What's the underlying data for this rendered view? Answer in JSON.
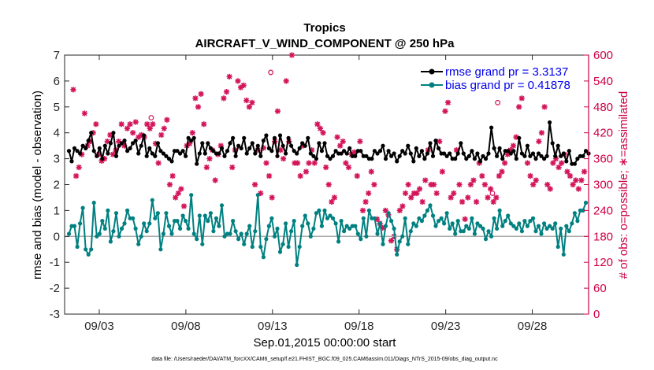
{
  "chart_data": {
    "type": "line",
    "title": "Tropics",
    "subtitle": "AIRCRAFT_V_WIND_COMPONENT @ 250 hPa",
    "xlabel": "Sep.01,2015 00:00:00 start",
    "ylabel_left": "rmse and bias (model - observation)",
    "ylabel_right": "# of obs: o=possible; ∗=assimilated",
    "footnote": "data file: /Users/raeder/DAI/ATM_forcXX/CAM6_setup/f.e21.FHIST_BGC.f09_025.CAM6assim.011/Diags_NTrS_2015-09/obs_diag_output.nc",
    "x_ticks": [
      "09/03",
      "09/08",
      "09/13",
      "09/18",
      "09/23",
      "09/28"
    ],
    "x_tick_days": [
      3,
      8,
      13,
      18,
      23,
      28
    ],
    "xlim": [
      1,
      31.25
    ],
    "ylim_left": [
      -3,
      7
    ],
    "y_ticks_left": [
      "-3",
      "-2",
      "-1",
      "0",
      "1",
      "2",
      "3",
      "4",
      "5",
      "6",
      "7"
    ],
    "ylim_right": [
      0,
      600
    ],
    "y_ticks_right": [
      "0",
      "60",
      "120",
      "180",
      "240",
      "300",
      "360",
      "420",
      "480",
      "540",
      "600"
    ],
    "legend": {
      "location": "top-right",
      "rmse_label": "rmse grand pr = 3.3137",
      "bias_label": "bias grand pr = 0.41878"
    },
    "colors": {
      "rmse": "#000000",
      "bias": "#008080",
      "obs": "#d4145a",
      "zero_line": "#aaaaaa",
      "right_axis": "#cc0044"
    },
    "rmse": [
      3.3,
      2.9,
      3.4,
      3.3,
      3.2,
      3.5,
      3.4,
      3.7,
      4.0,
      3.3,
      3.1,
      3.4,
      3.0,
      3.5,
      3.2,
      3.6,
      4.0,
      3.1,
      3.5,
      3.6,
      3.7,
      3.3,
      3.4,
      3.6,
      3.7,
      3.2,
      3.5,
      3.9,
      3.1,
      3.4,
      3.2,
      3.1,
      3.6,
      3.3,
      3.2,
      3.1,
      3.0,
      2.9,
      3.3,
      3.3,
      3.2,
      3.3,
      3.1,
      3.8,
      3.7,
      3.8,
      2.8,
      3.2,
      3.6,
      3.2,
      3.6,
      3.4,
      3.3,
      3.2,
      3.2,
      3.4,
      3.1,
      3.3,
      3.6,
      3.8,
      3.1,
      3.5,
      3.4,
      3.8,
      3.2,
      3.4,
      3.6,
      3.2,
      3.5,
      3.1,
      3.7,
      3.9,
      3.4,
      3.3,
      3.8,
      3.1,
      3.9,
      3.5,
      3.2,
      3.8,
      3.5,
      3.3,
      3.2,
      3.4,
      3.6,
      3.5,
      3.8,
      3.2,
      3.1,
      3.0,
      3.6,
      3.3,
      3.6,
      3.1,
      3.0,
      3.1,
      3.3,
      3.2,
      3.2,
      3.3,
      3.2,
      3.4,
      3.1,
      3.1,
      3.3,
      3.3,
      3.1,
      3.1,
      3.0,
      3.0,
      3.3,
      3.2,
      3.3,
      3.5,
      3.0,
      3.3,
      3.1,
      3.2,
      2.9,
      3.1,
      3.3,
      3.2,
      3.5,
      3.2,
      2.9,
      3.4,
      3.1,
      3.3,
      3.0,
      3.2,
      3.6,
      3.1,
      3.7,
      3.4,
      3.2,
      3.2,
      3.1,
      3.2,
      3.0,
      3.0,
      3.2,
      3.6,
      3.2,
      3.0,
      3.1,
      3.3,
      3.0,
      3.2,
      2.9,
      3.1,
      3.0,
      3.2,
      4.2,
      3.4,
      3.1,
      3.4,
      3.0,
      3.3,
      3.3,
      3.2,
      3.3,
      3.0,
      3.8,
      3.2,
      3.1,
      3.5,
      3.1,
      3.2,
      3.0,
      3.2,
      3.1,
      3.0,
      3.1,
      4.4,
      3.6,
      3.1,
      3.5,
      3.1,
      3.2,
      2.9,
      3.3,
      2.8,
      2.8,
      3.0,
      3.1,
      3.1,
      3.3,
      3.2
    ],
    "bias": [
      0.1,
      0.4,
      0.4,
      -0.4,
      0.5,
      1.1,
      -0.5,
      -0.7,
      -0.5,
      1.3,
      0.0,
      0.1,
      0.6,
      0.3,
      1.0,
      -0.2,
      0.2,
      0.9,
      0.0,
      0.3,
      0.5,
      1.0,
      0.7,
      0.7,
      0.3,
      -0.3,
      0.0,
      0.5,
      0.2,
      0.5,
      1.4,
      0.7,
      0.9,
      -0.5,
      0.1,
      0.9,
      0.4,
      0.1,
      0.6,
      0.6,
      0.3,
      0.8,
      0.6,
      0.3,
      1.6,
      0.1,
      -0.1,
      0.8,
      -0.3,
      0.8,
      0.6,
      0.9,
      0.2,
      0.7,
      0.4,
      1.2,
      0.0,
      0.1,
      0.1,
      0.6,
      0.2,
      -0.1,
      0.1,
      -0.3,
      0.1,
      0.4,
      -0.4,
      0.2,
      1.6,
      -0.4,
      -0.8,
      -0.1,
      0.4,
      0.7,
      0.0,
      0.3,
      -0.6,
      -0.3,
      0.5,
      -0.4,
      0.2,
      0.6,
      -1.1,
      -0.4,
      0.4,
      0.8,
      0.5,
      0.0,
      0.3,
      0.9,
      1.0,
      0.4,
      1.0,
      0.7,
      0.8,
      0.7,
      0.5,
      -0.2,
      0.6,
      0.2,
      0.4,
      0.3,
      0.4,
      0.4,
      0.1,
      -0.1,
      0.7,
      0.0,
      1.0,
      0.7,
      0.7,
      0.1,
      0.5,
      -0.3,
      0.4,
      0.9,
      0.6,
      0.3,
      -0.7,
      -0.2,
      0.0,
      0.7,
      -0.3,
      0.2,
      0.5,
      0.4,
      0.7,
      0.6,
      0.8,
      1.0,
      1.2,
      0.8,
      0.4,
      0.6,
      0.7,
      0.5,
      0.9,
      0.3,
      0.5,
      0.1,
      0.6,
      0.2,
      0.2,
      0.4,
      0.3,
      0.7,
      0.1,
      0.5,
      0.4,
      0.3,
      -0.1,
      0.2,
      0.0,
      0.7,
      0.3,
      1.0,
      0.4,
      0.6,
      0.8,
      0.5,
      0.4,
      0.3,
      0.5,
      0.2,
      0.6,
      0.4,
      0.6,
      0.7,
      0.2,
      0.4,
      0.1,
      0.5,
      0.3,
      0.4,
      0.3,
      0.5,
      -0.4,
      0.3,
      -0.7,
      0.4,
      0.2,
      0.5,
      0.9,
      0.6,
      1.0,
      1.0,
      1.3
    ],
    "obs_assimilated": [
      520,
      320,
      340,
      370,
      465,
      390,
      400,
      420,
      440,
      370,
      355,
      360,
      400,
      415,
      370,
      380,
      400,
      440,
      390,
      430,
      440,
      420,
      445,
      410,
      415,
      410,
      440,
      430,
      440,
      395,
      350,
      415,
      430,
      450,
      300,
      320,
      270,
      280,
      290,
      250,
      390,
      395,
      420,
      500,
      480,
      510,
      440,
      340,
      360,
      380,
      310,
      370,
      390,
      500,
      515,
      550,
      340,
      380,
      540,
      525,
      530,
      495,
      480,
      490,
      300,
      380,
      280,
      385,
      350,
      320,
      270,
      400,
      470,
      380,
      360,
      540,
      400,
      600,
      350,
      350,
      320,
      390,
      330,
      350,
      380,
      350,
      440,
      430,
      420,
      340,
      300,
      260,
      270,
      410,
      390,
      400,
      350,
      340,
      370,
      375,
      320,
      400,
      240,
      260,
      280,
      330,
      300,
      220,
      210,
      200,
      240,
      230,
      170,
      180,
      150,
      240,
      250,
      280,
      300,
      270,
      280,
      280,
      290,
      260,
      310,
      380,
      300,
      300,
      280,
      400,
      330,
      470,
      490,
      270,
      280,
      380,
      300,
      260,
      220,
      270,
      300,
      310,
      260,
      350,
      320,
      300,
      270,
      290,
      260,
      270,
      320,
      330,
      350,
      370,
      380,
      390,
      410,
      480,
      500,
      540,
      350,
      320,
      300,
      310,
      400,
      420,
      480,
      300,
      290,
      350,
      360,
      340,
      350,
      370,
      330,
      320,
      300,
      310,
      290,
      310,
      330
    ],
    "obs_possible_outliers": [
      {
        "day": 6.0,
        "value": 455
      },
      {
        "day": 12.9,
        "value": 560
      },
      {
        "day": 25.7,
        "value": 280
      },
      {
        "day": 26.0,
        "value": 490
      }
    ]
  }
}
